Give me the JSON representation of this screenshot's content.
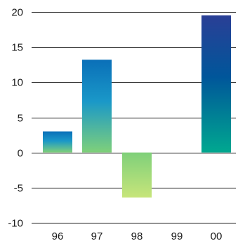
{
  "chart_data": {
    "type": "bar",
    "title": "",
    "xlabel": "",
    "ylabel": "",
    "categories": [
      "96",
      "97",
      "98",
      "99",
      "00"
    ],
    "values": [
      3,
      13.2,
      -6.4,
      0,
      19.5
    ],
    "ylim": [
      -10,
      20
    ],
    "yticks": [
      -10,
      -5,
      0,
      5,
      10,
      15,
      20
    ],
    "ytick_labels": [
      "-10",
      "-5",
      "0",
      "5",
      "10",
      "15",
      "20"
    ],
    "grid": true,
    "legend": "none",
    "colors": {
      "gradient_top": "#0a6fb8",
      "gradient_mid": "#0097c4",
      "gradient_bottom": "#7fd07a",
      "negative_top": "#7fd07a",
      "negative_bottom": "#c7e57a",
      "last_top": "#2a3f96",
      "last_mid": "#00569a",
      "last_bottom": "#00a890",
      "grid": "#1a1a1a"
    }
  }
}
